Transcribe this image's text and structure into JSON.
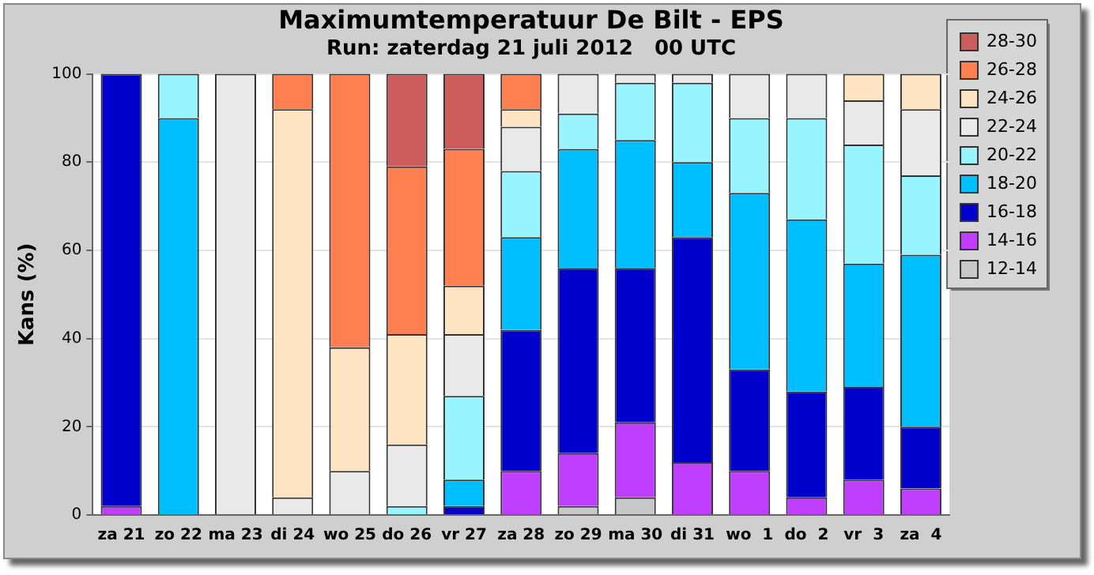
{
  "chart_data": {
    "type": "bar",
    "title": "Maximumtemperatuur De Bilt - EPS",
    "subtitle": "Run: zaterdag 21 juli 2012   00 UTC",
    "ylabel": "Kans (%)",
    "categories": [
      "za 21",
      "zo 22",
      "ma 23",
      "di 24",
      "wo 25",
      "do 26",
      "vr 27",
      "za 28",
      "zo 29",
      "ma 30",
      "di 31",
      "wo  1",
      "do  2",
      "vr  3",
      "za  4"
    ],
    "stacked": true,
    "ylim": [
      0,
      100
    ],
    "yticks": [
      0,
      20,
      40,
      60,
      80,
      100
    ],
    "grid": "y",
    "legend": "right",
    "series": [
      {
        "name": "12-14",
        "color": "#c8c8c8",
        "values": [
          0,
          0,
          0,
          0,
          0,
          0,
          0,
          0,
          2,
          4,
          0,
          0,
          0,
          0,
          0
        ]
      },
      {
        "name": "14-16",
        "color": "#bf3eff",
        "values": [
          2,
          0,
          0,
          0,
          0,
          0,
          0,
          10,
          12,
          17,
          12,
          10,
          4,
          8,
          6
        ]
      },
      {
        "name": "16-18",
        "color": "#0000cd",
        "values": [
          98,
          0,
          0,
          0,
          0,
          0,
          2,
          32,
          42,
          35,
          51,
          23,
          24,
          21,
          14
        ]
      },
      {
        "name": "18-20",
        "color": "#00bfff",
        "values": [
          0,
          90,
          0,
          0,
          0,
          0,
          6,
          21,
          27,
          29,
          17,
          40,
          39,
          28,
          39
        ]
      },
      {
        "name": "20-22",
        "color": "#98f5ff",
        "values": [
          0,
          10,
          0,
          0,
          0,
          2,
          19,
          15,
          8,
          13,
          18,
          17,
          23,
          27,
          18
        ]
      },
      {
        "name": "22-24",
        "color": "#e9e9e9",
        "values": [
          0,
          0,
          100,
          4,
          10,
          14,
          14,
          10,
          9,
          2,
          2,
          10,
          10,
          10,
          15
        ]
      },
      {
        "name": "24-26",
        "color": "#ffe4c4",
        "values": [
          0,
          0,
          0,
          88,
          28,
          25,
          11,
          4,
          0,
          0,
          0,
          0,
          0,
          6,
          8
        ]
      },
      {
        "name": "26-28",
        "color": "#ff7f50",
        "values": [
          0,
          0,
          0,
          8,
          62,
          38,
          31,
          8,
          0,
          0,
          0,
          0,
          0,
          0,
          0
        ]
      },
      {
        "name": "28-30",
        "color": "#cd5c5c",
        "values": [
          0,
          0,
          0,
          0,
          0,
          21,
          17,
          0,
          0,
          0,
          0,
          0,
          0,
          0,
          0
        ]
      }
    ]
  }
}
